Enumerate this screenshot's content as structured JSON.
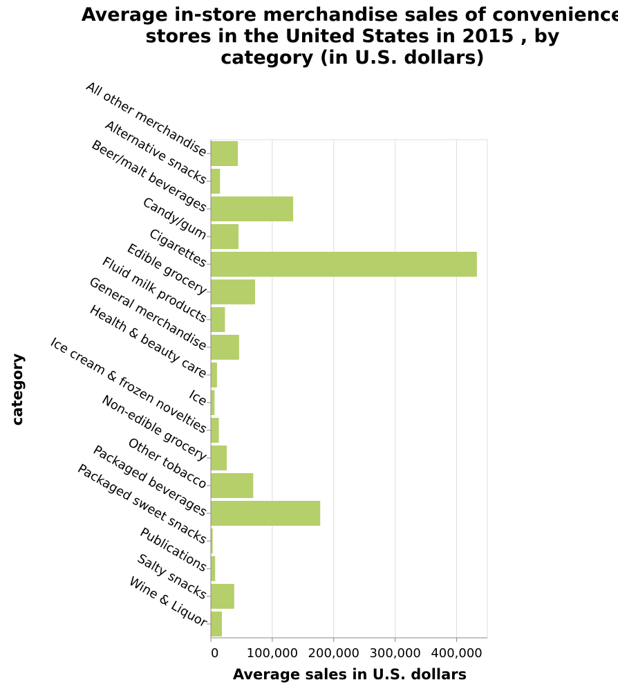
{
  "chart_data": {
    "type": "bar",
    "orientation": "horizontal",
    "title": "Average in-store merchandise sales of convenience stores in the United States in 2015 , by category (in U.S. dollars)",
    "title_lines": [
      "Average in-store merchandise sales of convenience",
      "stores in the United States in 2015 , by",
      "category (in U.S. dollars)"
    ],
    "xlabel": "Average sales in U.S. dollars",
    "ylabel": "category",
    "xlim": [
      0,
      450000
    ],
    "xticks": [
      0,
      100000,
      200000,
      300000,
      400000
    ],
    "xtick_labels": [
      "0",
      "100,000",
      "200,000",
      "300,000",
      "400,000"
    ],
    "grid": true,
    "bar_color": "#b5cf6b",
    "categories": [
      "All other merchandise",
      "Alternative snacks",
      "Beer/malt beverages",
      "Candy/gum",
      "Cigarettes",
      "Edible grocery",
      "Fluid milk products",
      "General merchandise",
      "Health & beauty care",
      "Ice",
      "Ice cream & frozen novelties",
      "Non-edible grocery",
      "Other tobacco",
      "Packaged beverages",
      "Packaged sweet snacks",
      "Publications",
      "Salty snacks",
      "Wine & Liquor"
    ],
    "values": [
      44000,
      15000,
      134000,
      45000,
      433000,
      72000,
      23000,
      46000,
      10000,
      6000,
      13000,
      26000,
      69000,
      178000,
      3000,
      7000,
      38000,
      18000
    ]
  }
}
